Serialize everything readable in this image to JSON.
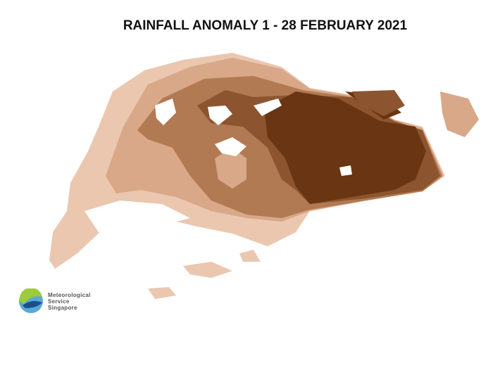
{
  "title": "RAINFALL ANOMALY 1 - 28 FEBRUARY 2021",
  "logo": {
    "lines": [
      "Meteorological",
      "Service",
      "Singapore"
    ]
  },
  "colors": {
    "lightest": "#ebc7b0",
    "light": "#d8a888",
    "medium": "#b27a52",
    "dark": "#8c5530",
    "darkest": "#6a3512",
    "reservoir": "#ffffff"
  }
}
